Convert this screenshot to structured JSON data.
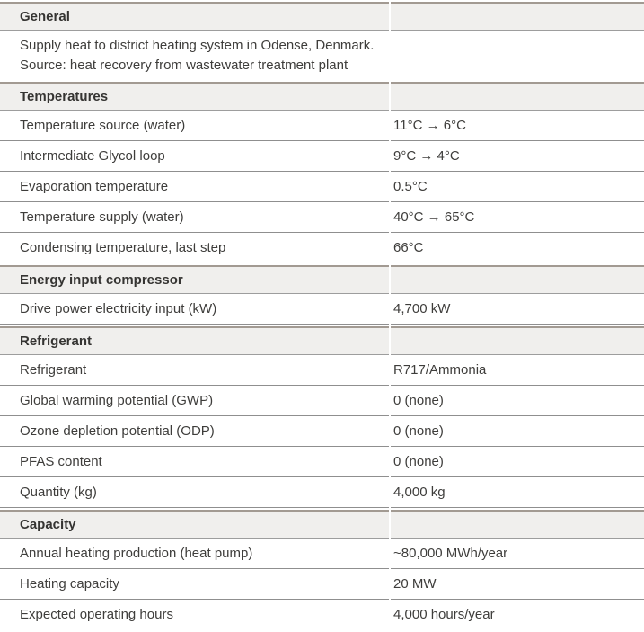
{
  "colors": {
    "section_band_bg": "#f0efed",
    "section_band_top_border": "#a29a92",
    "row_rule": "#8f8f8f",
    "text": "#3e3d3b"
  },
  "general": {
    "title": "General",
    "line1": "Supply heat to district heating system in Odense, Denmark.",
    "line2": "Source: heat recovery from wastewater treatment plant"
  },
  "temperatures": {
    "title": "Temperatures",
    "rows": [
      {
        "label": "Temperature source (water)",
        "value": "11°C → 6°C"
      },
      {
        "label": "Intermediate Glycol loop",
        "value": "9°C → 4°C"
      },
      {
        "label": "Evaporation temperature",
        "value": "0.5°C"
      },
      {
        "label": "Temperature supply (water)",
        "value": "40°C → 65°C"
      },
      {
        "label": "Condensing temperature, last step",
        "value": "66°C"
      }
    ]
  },
  "energy": {
    "title": "Energy input compressor",
    "rows": [
      {
        "label": "Drive power electricity input (kW)",
        "value": "4,700 kW"
      }
    ]
  },
  "refrigerant": {
    "title": "Refrigerant",
    "rows": [
      {
        "label": "Refrigerant",
        "value": "R717/Ammonia"
      },
      {
        "label": "Global warming potential (GWP)",
        "value": "0 (none)"
      },
      {
        "label": "Ozone depletion potential (ODP)",
        "value": "0 (none)"
      },
      {
        "label": "PFAS content",
        "value": "0 (none)"
      },
      {
        "label": "Quantity (kg)",
        "value": "4,000 kg"
      }
    ]
  },
  "capacity": {
    "title": "Capacity",
    "rows": [
      {
        "label": "Annual heating production (heat pump)",
        "value": "~80,000 MWh/year"
      },
      {
        "label": "Heating capacity",
        "value": "20 MW"
      },
      {
        "label": "Expected operating hours",
        "value": "4,000 hours/year"
      }
    ]
  }
}
